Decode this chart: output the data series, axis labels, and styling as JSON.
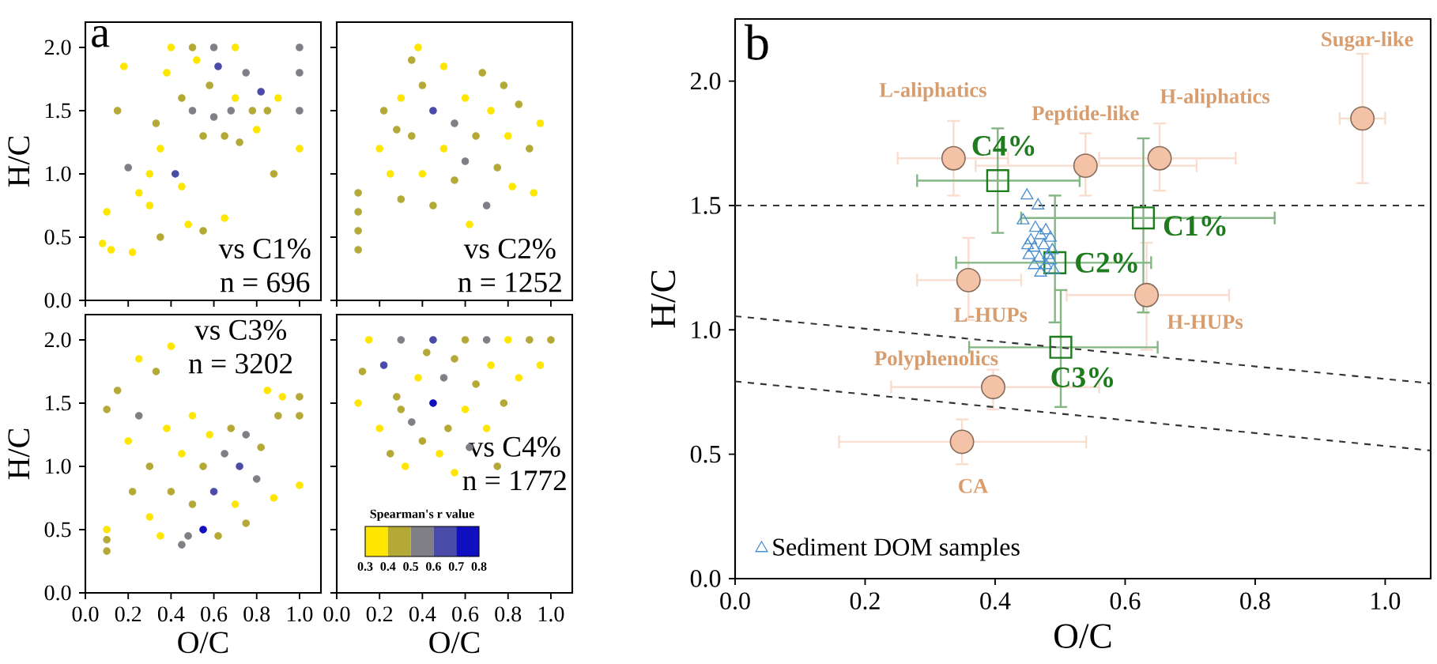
{
  "chart_data": [
    {
      "type": "scatter",
      "title": "a",
      "ylabel": "H/C",
      "marker": "circle",
      "tick_labels": "y",
      "annotations": [
        "vs C1%",
        "n = 696"
      ],
      "xlim": [
        0,
        1.1
      ],
      "ylim": [
        0,
        2.2
      ],
      "xticks": [
        {
          "value": 0,
          "label": null
        },
        {
          "value": 0.2,
          "label": null
        },
        {
          "value": 0.4,
          "label": null
        },
        {
          "value": 0.6,
          "label": null
        },
        {
          "value": 0.8,
          "label": null
        },
        {
          "value": 1.0,
          "label": null
        }
      ],
      "yticks": [
        {
          "value": 0,
          "label": "0.0"
        },
        {
          "value": 0.5,
          "label": "0.5"
        },
        {
          "value": 1.0,
          "label": "1.0"
        },
        {
          "value": 1.5,
          "label": "1.5"
        },
        {
          "value": 2.0,
          "label": "2.0"
        }
      ],
      "series": [
        {
          "color": "#ffe600",
          "x": [
            0.08,
            0.1,
            0.12,
            0.18,
            0.25,
            0.22,
            0.3,
            0.35,
            0.38,
            0.4,
            0.48,
            0.52,
            0.65,
            0.7,
            0.7,
            0.8,
            0.9,
            1.0,
            0.3,
            0.45
          ],
          "values": [
            0.45,
            0.7,
            0.4,
            1.85,
            0.85,
            0.38,
            1.0,
            1.2,
            1.8,
            2.0,
            0.6,
            1.9,
            0.65,
            1.6,
            2.0,
            1.35,
            1.6,
            1.2,
            0.75,
            0.9
          ]
        },
        {
          "color": "#b5a936",
          "x": [
            0.15,
            0.33,
            0.35,
            0.45,
            0.5,
            0.55,
            0.55,
            0.58,
            0.65,
            0.72,
            0.78,
            0.85,
            0.88
          ],
          "values": [
            1.5,
            1.4,
            0.5,
            1.6,
            2.0,
            1.3,
            0.55,
            1.7,
            1.3,
            1.25,
            1.5,
            1.5,
            1.0
          ]
        },
        {
          "color": "#7f7f85",
          "x": [
            0.2,
            0.5,
            0.6,
            0.6,
            0.68,
            0.75,
            1.0,
            1.0,
            1.0
          ],
          "values": [
            1.05,
            1.5,
            1.45,
            2.0,
            1.5,
            1.8,
            1.5,
            1.8,
            2.0
          ]
        },
        {
          "color": "#4a4aa8",
          "x": [
            0.42,
            0.62,
            0.82
          ],
          "values": [
            1.0,
            1.85,
            1.65
          ]
        }
      ]
    },
    {
      "type": "scatter",
      "marker": "circle",
      "tick_labels": false,
      "annotations": [
        "vs C2%",
        "n = 1252"
      ],
      "xlim": [
        0,
        1.1
      ],
      "ylim": [
        0,
        2.2
      ],
      "xticks": [
        {
          "value": 0,
          "label": null
        },
        {
          "value": 0.2,
          "label": null
        },
        {
          "value": 0.4,
          "label": null
        },
        {
          "value": 0.6,
          "label": null
        },
        {
          "value": 0.8,
          "label": null
        },
        {
          "value": 1.0,
          "label": null
        }
      ],
      "yticks": [
        {
          "value": 0,
          "label": null
        },
        {
          "value": 0.5,
          "label": null
        },
        {
          "value": 1.0,
          "label": null
        },
        {
          "value": 1.5,
          "label": null
        },
        {
          "value": 2.0,
          "label": null
        }
      ],
      "series": [
        {
          "color": "#b5a936",
          "x": [
            0.1,
            0.1,
            0.1,
            0.1,
            0.22,
            0.3,
            0.35,
            0.4,
            0.45,
            0.55,
            0.65,
            0.68,
            0.75,
            0.78,
            0.85,
            0.9,
            0.35,
            0.28
          ],
          "values": [
            0.4,
            0.55,
            0.7,
            0.85,
            1.5,
            0.8,
            1.3,
            1.7,
            0.75,
            0.95,
            1.3,
            1.8,
            1.05,
            1.7,
            1.55,
            1.2,
            1.9,
            1.35
          ]
        },
        {
          "color": "#ffe600",
          "x": [
            0.2,
            0.25,
            0.3,
            0.38,
            0.4,
            0.5,
            0.5,
            0.6,
            0.62,
            0.72,
            0.8,
            0.82,
            0.92,
            0.95
          ],
          "values": [
            1.2,
            1.0,
            1.6,
            2.0,
            1.0,
            1.2,
            1.85,
            1.6,
            0.6,
            1.5,
            1.3,
            0.9,
            0.85,
            1.4
          ]
        },
        {
          "color": "#7f7f85",
          "x": [
            0.55,
            0.6,
            0.7
          ],
          "values": [
            1.4,
            1.1,
            0.75
          ]
        },
        {
          "color": "#4a4aa8",
          "x": [
            0.45
          ],
          "values": [
            1.5
          ]
        }
      ]
    },
    {
      "type": "scatter",
      "xlabel": "O/C",
      "ylabel": "H/C",
      "marker": "circle",
      "annotations": [
        "vs C3%",
        "n = 3202"
      ],
      "xlim": [
        0,
        1.1
      ],
      "ylim": [
        0,
        2.2
      ],
      "xticks": [
        {
          "value": 0,
          "label": "0.0"
        },
        {
          "value": 0.2,
          "label": "0.2"
        },
        {
          "value": 0.4,
          "label": "0.4"
        },
        {
          "value": 0.6,
          "label": "0.6"
        },
        {
          "value": 0.8,
          "label": "0.8"
        },
        {
          "value": 1.0,
          "label": "1.0"
        }
      ],
      "yticks": [
        {
          "value": 0,
          "label": "0.0"
        },
        {
          "value": 0.5,
          "label": "0.5"
        },
        {
          "value": 1.0,
          "label": "1.0"
        },
        {
          "value": 1.5,
          "label": "1.5"
        },
        {
          "value": 2.0,
          "label": "2.0"
        }
      ],
      "series": [
        {
          "color": "#b5a936",
          "x": [
            0.1,
            0.1,
            0.1,
            0.15,
            0.22,
            0.3,
            0.33,
            0.4,
            0.5,
            0.55,
            0.62,
            0.68,
            0.75,
            0.82,
            0.9,
            1.0,
            1.0
          ],
          "values": [
            0.33,
            0.42,
            1.45,
            1.6,
            0.8,
            1.0,
            1.75,
            0.8,
            0.7,
            1.0,
            0.45,
            1.3,
            0.55,
            1.15,
            1.4,
            1.4,
            1.55
          ]
        },
        {
          "color": "#ffe600",
          "x": [
            0.1,
            0.2,
            0.25,
            0.3,
            0.35,
            0.38,
            0.4,
            0.45,
            0.5,
            0.58,
            0.7,
            0.85,
            0.88,
            0.92,
            1.0
          ],
          "values": [
            0.5,
            1.2,
            1.85,
            0.6,
            0.45,
            1.3,
            1.95,
            1.1,
            1.4,
            1.25,
            0.7,
            1.6,
            0.75,
            1.55,
            0.85
          ]
        },
        {
          "color": "#7f7f85",
          "x": [
            0.25,
            0.48,
            0.65,
            0.75,
            0.8,
            0.45
          ],
          "values": [
            1.4,
            0.45,
            1.1,
            1.25,
            0.9,
            0.38
          ]
        },
        {
          "color": "#4a4aa8",
          "x": [
            0.6,
            0.72
          ],
          "values": [
            0.8,
            1.0
          ]
        },
        {
          "color": "#1010c0",
          "x": [
            0.55
          ],
          "values": [
            0.5
          ]
        }
      ]
    },
    {
      "type": "scatter",
      "xlabel": "O/C",
      "marker": "circle",
      "tick_labels": "x",
      "annotations": [
        "vs C4%",
        "n = 1772",
        "Spearman's r value",
        "0.3",
        "0.4",
        "0.5",
        "0.6",
        "0.7",
        "0.8"
      ],
      "xlim": [
        0,
        1.1
      ],
      "ylim": [
        0,
        2.2
      ],
      "xticks": [
        {
          "value": 0,
          "label": "0.0"
        },
        {
          "value": 0.2,
          "label": "0.2"
        },
        {
          "value": 0.4,
          "label": "0.4"
        },
        {
          "value": 0.6,
          "label": "0.6"
        },
        {
          "value": 0.8,
          "label": "0.8"
        },
        {
          "value": 1.0,
          "label": "1.0"
        }
      ],
      "yticks": [
        {
          "value": 0,
          "label": null
        },
        {
          "value": 0.5,
          "label": null
        },
        {
          "value": 1.0,
          "label": null
        },
        {
          "value": 1.5,
          "label": null
        },
        {
          "value": 2.0,
          "label": null
        }
      ],
      "series": [
        {
          "color": "#ffe600",
          "x": [
            0.1,
            0.15,
            0.2,
            0.32,
            0.38,
            0.48,
            0.55,
            0.6,
            0.7,
            0.72,
            0.8,
            0.85,
            0.95
          ],
          "values": [
            1.5,
            2.0,
            1.3,
            1.0,
            1.7,
            1.1,
            0.95,
            1.45,
            1.3,
            1.8,
            2.0,
            1.7,
            1.8
          ]
        },
        {
          "color": "#b5a936",
          "x": [
            0.12,
            0.25,
            0.28,
            0.4,
            0.42,
            0.52,
            0.55,
            0.6,
            0.65,
            0.75,
            0.78,
            0.9,
            1.0,
            0.3
          ],
          "values": [
            1.75,
            1.1,
            1.55,
            1.2,
            1.9,
            1.3,
            1.85,
            2.0,
            1.65,
            1.0,
            1.5,
            2.0,
            2.0,
            1.45
          ]
        },
        {
          "color": "#7f7f85",
          "x": [
            0.3,
            0.35,
            0.5,
            0.62,
            0.7
          ],
          "values": [
            2.0,
            1.35,
            1.7,
            1.15,
            2.0
          ]
        },
        {
          "color": "#4a4aa8",
          "x": [
            0.22,
            0.45
          ],
          "values": [
            1.8,
            2.0
          ]
        },
        {
          "color": "#1010c0",
          "x": [
            0.45
          ],
          "values": [
            1.5
          ]
        }
      ]
    },
    {
      "type": "scatter",
      "title": "b",
      "xlabel": "O/C",
      "ylabel": "H/C",
      "legend": "bottom left",
      "xlim": [
        0,
        1.07
      ],
      "ylim": [
        0,
        2.25
      ],
      "xticks": [
        {
          "value": 0,
          "label": "0.0"
        },
        {
          "value": 0.2,
          "label": "0.2"
        },
        {
          "value": 0.4,
          "label": "0.4"
        },
        {
          "value": 0.6,
          "label": "0.6"
        },
        {
          "value": 0.8,
          "label": "0.8"
        },
        {
          "value": 1.0,
          "label": "1.0"
        }
      ],
      "yticks": [
        {
          "value": 0,
          "label": "0.0"
        },
        {
          "value": 0.5,
          "label": "0.5"
        },
        {
          "value": 1.0,
          "label": "1.0"
        },
        {
          "value": 1.5,
          "label": "1.5"
        },
        {
          "value": 2.0,
          "label": "2.0"
        }
      ],
      "ref_lines": [
        {
          "axis": "y",
          "value": 1.5,
          "color": "#333333",
          "line_style": "dashed"
        }
      ],
      "series": [
        {
          "type": "scatter",
          "marker": "circle",
          "color": "#f4c2a6",
          "x": [
            0.336,
            0.539,
            0.653,
            0.965,
            0.359,
            0.633,
            0.397,
            0.349
          ],
          "values": [
            1.69,
            1.66,
            1.69,
            1.85,
            1.2,
            1.14,
            0.77,
            0.55
          ],
          "xerrors": [
            [
              0.25,
              0.42
            ],
            [
              0.37,
              0.71
            ],
            [
              0.56,
              0.77
            ],
            [
              0.93,
              1.0
            ],
            [
              0.28,
              0.44
            ],
            [
              0.51,
              0.76
            ],
            [
              0.24,
              0.56
            ],
            [
              0.16,
              0.54
            ]
          ],
          "errors": [
            [
              1.54,
              1.84
            ],
            [
              1.54,
              1.79
            ],
            [
              1.56,
              1.83
            ],
            [
              1.59,
              2.11
            ],
            [
              1.04,
              1.37
            ],
            [
              0.92,
              1.35
            ],
            [
              0.68,
              0.84
            ],
            [
              0.46,
              0.64
            ]
          ]
        },
        {
          "type": "scatter",
          "marker": "square",
          "color": "#1e7b1e",
          "x": [
            0.404,
            0.628,
            0.492,
            0.501
          ],
          "values": [
            1.6,
            1.45,
            1.27,
            0.93
          ],
          "xerrors": [
            [
              0.28,
              0.53
            ],
            [
              0.44,
              0.83
            ],
            [
              0.34,
              0.64
            ],
            [
              0.36,
              0.65
            ]
          ],
          "errors": [
            [
              1.39,
              1.81
            ],
            [
              1.07,
              1.77
            ],
            [
              1.03,
              1.54
            ],
            [
              0.69,
              1.16
            ]
          ]
        },
        {
          "type": "scatter",
          "marker": "triangle",
          "color": "#4a8fd0",
          "name": "Sediment DOM samples",
          "x": [
            0.449,
            0.466,
            0.443,
            0.462,
            0.478,
            0.455,
            0.47,
            0.485,
            0.46,
            0.475,
            0.488,
            0.452,
            0.468,
            0.482,
            0.46,
            0.478,
            0.49,
            0.47,
            0.485,
            0.45
          ],
          "values": [
            1.54,
            1.5,
            1.44,
            1.41,
            1.4,
            1.36,
            1.38,
            1.37,
            1.33,
            1.34,
            1.32,
            1.3,
            1.29,
            1.3,
            1.26,
            1.26,
            1.24,
            1.23,
            1.28,
            1.34
          ]
        },
        {
          "type": "line",
          "line_style": "dashed",
          "color": "#333333",
          "x": [
            0,
            1.07
          ],
          "values": [
            1.055,
            0.785
          ]
        },
        {
          "type": "line",
          "line_style": "dashed",
          "color": "#333333",
          "x": [
            0,
            1.07
          ],
          "values": [
            0.793,
            0.515
          ]
        }
      ],
      "annotations": [
        {
          "text": "L-aliphatics",
          "x": 0.336,
          "y": 1.69
        },
        {
          "text": "Peptide-like",
          "x": 0.539,
          "y": 1.66
        },
        {
          "text": "H-aliphatics",
          "x": 0.653,
          "y": 1.69
        },
        {
          "text": "Sugar-like",
          "x": 0.965,
          "y": 2.11
        },
        {
          "text": "L-HUPs",
          "x": 0.359,
          "y": 1.2
        },
        {
          "text": "H-HUPs",
          "x": 0.633,
          "y": 1.14
        },
        {
          "text": "Polyphenolics",
          "x": 0.397,
          "y": 0.77
        },
        {
          "text": "CA",
          "x": 0.349,
          "y": 0.55
        },
        {
          "text": "C4%",
          "x": 0.404,
          "y": 1.6
        },
        {
          "text": "C1%",
          "x": 0.628,
          "y": 1.45
        },
        {
          "text": "C2%",
          "x": 0.492,
          "y": 1.27
        },
        {
          "text": "C3%",
          "x": 0.501,
          "y": 0.93
        }
      ]
    }
  ]
}
